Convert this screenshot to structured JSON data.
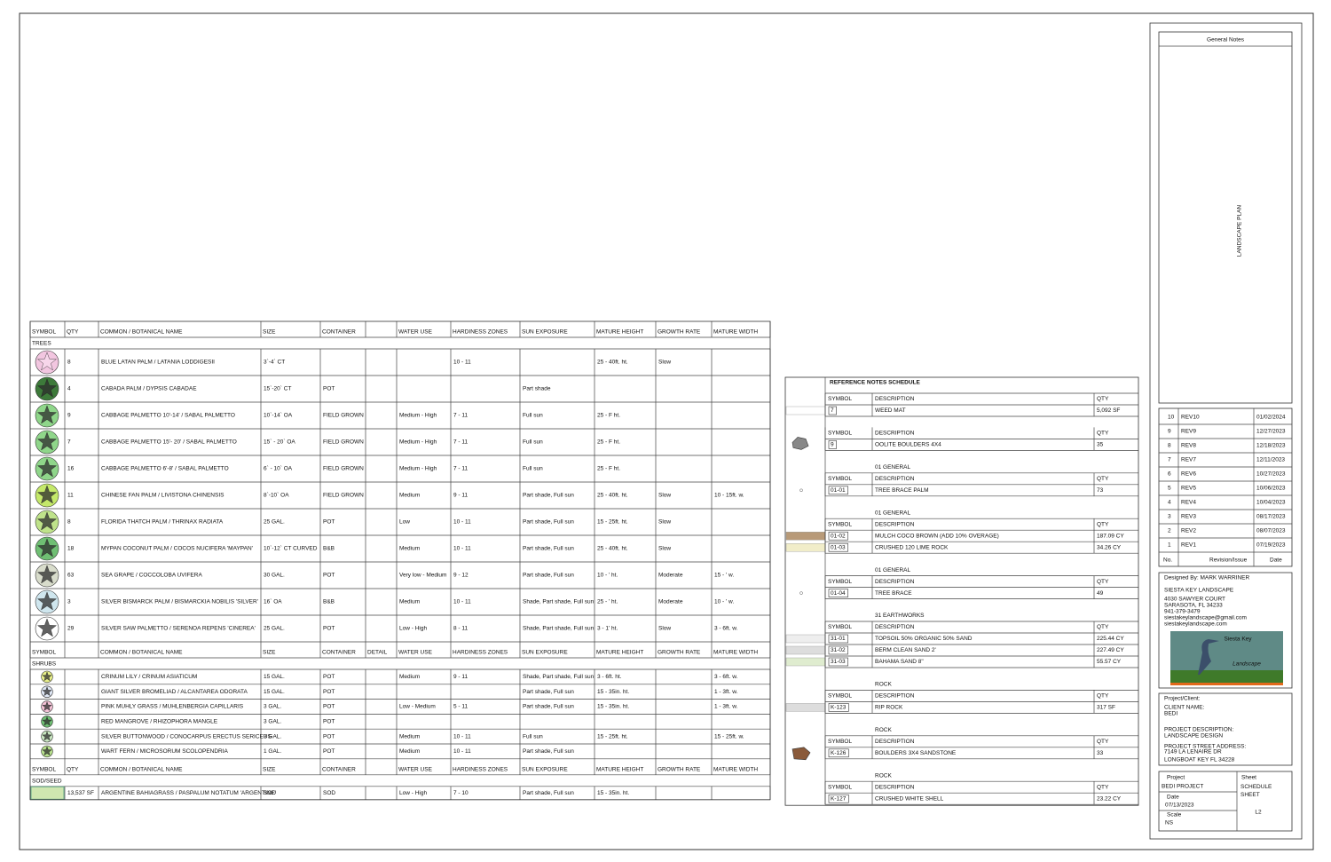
{
  "plant_schedule": {
    "sections": [
      {
        "header": [
          "SYMBOL",
          "QTY",
          "COMMON / BOTANICAL NAME",
          "SIZE",
          "CONTAINER",
          null,
          "WATER USE",
          "HARDINESS ZONES",
          "SUN EXPOSURE",
          "MATURE HEIGHT",
          "GROWTH RATE",
          "MATURE WIDTH"
        ],
        "label": "TREES",
        "rows": [
          [
            8,
            "BLUE LATAN PALM / LATANIA LODDIGESII",
            "3`-4` CT",
            null,
            null,
            null,
            "10 - 11",
            null,
            "25 - 40ft. ht.",
            "Slow",
            null
          ],
          [
            4,
            "CABADA PALM / DYPSIS CABADAE",
            "15`-20` CT",
            "POT",
            null,
            null,
            null,
            "Part shade",
            null,
            null,
            null
          ],
          [
            9,
            "CABBAGE PALMETTO 10'-14' / SABAL PALMETTO",
            "10`-14` OA",
            "FIELD GROWN",
            null,
            "Medium - High",
            "7 - 11",
            "Full sun",
            "25 - F ht.",
            null,
            null
          ],
          [
            7,
            "CABBAGE PALMETTO 15'- 20' / SABAL PALMETTO",
            "15` - 20` OA",
            "FIELD GROWN",
            null,
            "Medium - High",
            "7 - 11",
            "Full sun",
            "25 - F ht.",
            null,
            null
          ],
          [
            16,
            "CABBAGE PALMETTO 6'-8' / SABAL PALMETTO",
            "6` - 10` OA",
            "FIELD GROWN",
            null,
            "Medium - High",
            "7 - 11",
            "Full sun",
            "25 - F ht.",
            null,
            null
          ],
          [
            11,
            "CHINESE FAN PALM / LIVISTONA CHINENSIS",
            "8`-10` OA",
            "FIELD GROWN",
            null,
            "Medium",
            "9 - 11",
            "Part shade, Full sun",
            "25 - 40ft. ht.",
            "Slow",
            "10 - 15ft. w."
          ],
          [
            8,
            "FLORIDA THATCH PALM / THRINAX RADIATA",
            "25 GAL.",
            "POT",
            null,
            "Low",
            "10 - 11",
            "Part shade, Full sun",
            "15 - 25ft. ht.",
            "Slow",
            null
          ],
          [
            18,
            "MYPAN COCONUT PALM / COCOS NUCIFERA 'MAYPAN'",
            "10`-12` CT CURVED",
            "B&B",
            null,
            "Medium",
            "10 - 11",
            "Part shade, Full sun",
            "25 - 40ft. ht.",
            "Slow",
            null
          ],
          [
            63,
            "SEA GRAPE / COCCOLOBA UVIFERA",
            "30 GAL.",
            "POT",
            null,
            "Very low - Medium",
            "9 - 12",
            "Part shade, Full sun",
            "10 - ' ht.",
            "Moderate",
            "15 - ' w."
          ],
          [
            3,
            "SILVER BISMARCK PALM / BISMARCKIA NOBILIS 'SILVER'",
            "16` OA",
            "B&B",
            null,
            "Medium",
            "10 - 11",
            "Shade, Part shade, Full sun",
            "25 - ' ht.",
            "Moderate",
            "10 - ' w."
          ],
          [
            29,
            "SILVER SAW PALMETTO / SERENOA REPENS 'CINEREA'",
            "25 GAL.",
            "POT",
            null,
            "Low - High",
            "8 - 11",
            "Shade, Part shade, Full sun",
            "3 - 1' ht.",
            "Slow",
            "3 - 6ft. w."
          ]
        ]
      },
      {
        "header": [
          "SYMBOL",
          null,
          "COMMON / BOTANICAL NAME",
          "SIZE",
          "CONTAINER",
          "DETAIL",
          "WATER USE",
          "HARDINESS ZONES",
          "SUN EXPOSURE",
          "MATURE HEIGHT",
          "GROWTH RATE",
          "MATURE WIDTH"
        ],
        "label": "SHRUBS",
        "rows": [
          [
            null,
            "CRINUM LILY / CRINUM ASIATICUM",
            "15 GAL.",
            "POT",
            null,
            "Medium",
            "9 - 11",
            "Shade, Part shade, Full sun",
            "3 - 6ft. ht.",
            null,
            "3 - 6ft. w."
          ],
          [
            null,
            "GIANT SILVER BROMELIAD / ALCANTAREA ODORATA",
            "15 GAL.",
            "POT",
            null,
            null,
            null,
            "Part shade, Full sun",
            "15 - 35in. ht.",
            null,
            "1 - 3ft. w."
          ],
          [
            null,
            "PINK MUHLY GRASS / MUHLENBERGIA CAPILLARIS",
            "3 GAL.",
            "POT",
            null,
            "Low - Medium",
            "5 - 11",
            "Part shade, Full sun",
            "15 - 35in. ht.",
            null,
            "1 - 3ft. w."
          ],
          [
            null,
            "RED MANGROVE / RHIZOPHORA MANGLE",
            "3 GAL.",
            "POT",
            null,
            null,
            null,
            null,
            null,
            null,
            null
          ],
          [
            null,
            "SILVER BUTTONWOOD / CONOCARPUS ERECTUS SERICEUS",
            "3 GAL.",
            "POT",
            null,
            "Medium",
            "10 - 11",
            "Full sun",
            "15 - 25ft. ht.",
            null,
            "15 - 25ft. w."
          ],
          [
            null,
            "WART FERN / MICROSORUM SCOLOPENDRIA",
            "1 GAL.",
            "POT",
            null,
            "Medium",
            "10 - 11",
            "Part shade, Full sun",
            null,
            null,
            null
          ]
        ]
      },
      {
        "header": [
          "SYMBOL",
          "QTY",
          "COMMON / BOTANICAL NAME",
          "SIZE",
          "CONTAINER",
          null,
          "WATER USE",
          "HARDINESS ZONES",
          "SUN EXPOSURE",
          "MATURE HEIGHT",
          "GROWTH RATE",
          "MATURE WIDTH"
        ],
        "label": "SOD/SEED",
        "rows": [
          [
            "13,537 SF",
            "ARGENTINE BAHIAGRASS / PASPALUM NOTATUM 'ARGENTINE'",
            "SOD",
            "SOD",
            null,
            "Low - High",
            "7 - 10",
            "Part shade, Full sun",
            "15 - 35in. ht.",
            null,
            null
          ]
        ]
      }
    ]
  },
  "reference_notes": {
    "title": "REFERENCE NOTES SCHEDULE",
    "groups": [
      {
        "header": [
          "SYMBOL",
          "DESCRIPTION",
          "QTY"
        ],
        "rows": [
          [
            "7",
            "WEED MAT",
            "5,092 SF"
          ]
        ]
      },
      {
        "header": [
          "SYMBOL",
          "DESCRIPTION",
          "QTY"
        ],
        "rows": [
          [
            "9",
            "OOLITE BOULDERS 4X4",
            "35"
          ]
        ]
      },
      {
        "heading": "01 GENERAL",
        "header": [
          "SYMBOL",
          "DESCRIPTION",
          "QTY"
        ],
        "rows": [
          [
            "01-01",
            "TREE BRACE PALM",
            "73"
          ]
        ]
      },
      {
        "heading": "01 GENERAL",
        "header": [
          "SYMBOL",
          "DESCRIPTION",
          "QTY"
        ],
        "rows": [
          [
            "01-02",
            "MULCH COCO BROWN (ADD 10% OVERAGE)",
            "187.09 CY"
          ],
          [
            "01-03",
            "CRUSHED 120 LIME ROCK",
            "34.26 CY"
          ]
        ]
      },
      {
        "heading": "01 GENERAL",
        "header": [
          "SYMBOL",
          "DESCRIPTION",
          "QTY"
        ],
        "rows": [
          [
            "01-04",
            "TREE BRACE",
            "49"
          ]
        ]
      },
      {
        "heading": "31 EARTHWORKS",
        "header": [
          "SYMBOL",
          "DESCRIPTION",
          "QTY"
        ],
        "rows": [
          [
            "31-01",
            "TOPSOIL 50% ORGANIC 50% SAND",
            "225.44 CY"
          ],
          [
            "31-02",
            "BERM CLEAN SAND 2'",
            "227.49 CY"
          ],
          [
            "31-03",
            "BAHAMA SAND 8\"",
            "55.57 CY"
          ]
        ]
      },
      {
        "heading": "ROCK",
        "header": [
          "SYMBOL",
          "DESCRIPTION",
          "QTY"
        ],
        "rows": [
          [
            "K-123",
            "RIP ROCK",
            "317 SF"
          ]
        ]
      },
      {
        "heading": "ROCK",
        "header": [
          "SYMBOL",
          "DESCRIPTION",
          "QTY"
        ],
        "rows": [
          [
            "K-126",
            "BOULDERS 3X4 SANDSTONE",
            "33"
          ]
        ]
      },
      {
        "heading": "ROCK",
        "header": [
          "SYMBOL",
          "DESCRIPTION",
          "QTY"
        ],
        "rows": [
          [
            "K-127",
            "CRUSHED WHITE SHELL",
            "23.22 CY"
          ]
        ]
      }
    ]
  },
  "title_block": {
    "general_notes": "General Notes",
    "sheet_title": "LANDSCAPE PLAN",
    "revisions": [
      [
        10,
        "REV10",
        "01/02/2024"
      ],
      [
        9,
        "REV9",
        "12/27/2023"
      ],
      [
        8,
        "REV8",
        "12/18/2023"
      ],
      [
        7,
        "REV7",
        "12/11/2023"
      ],
      [
        6,
        "REV6",
        "10/27/2023"
      ],
      [
        5,
        "REV5",
        "10/06/2023"
      ],
      [
        4,
        "REV4",
        "10/04/2023"
      ],
      [
        3,
        "REV3",
        "08/17/2023"
      ],
      [
        2,
        "REV2",
        "08/07/2023"
      ],
      [
        1,
        "REV1",
        "07/19/2023"
      ]
    ],
    "revision_header": [
      "No.",
      "Revision/Issue",
      "Date"
    ],
    "designer": [
      "Designed By: MARK WARRINER",
      "SIESTA KEY LANDSCAPE",
      "4030 SAWYER COURT",
      "SARASOTA, FL 34233",
      "941-379-3479",
      "siestakeylandscape@gmail.com",
      "siestakeylandscape.com"
    ],
    "logo": [
      "Siesta Key",
      "Landscape"
    ],
    "project": [
      "Project/Client:",
      "CLIENT NAME:",
      "BEDI",
      "PROJECT DESCRIPTION:",
      "LANDSCAPE DESIGN",
      "PROJECT STREET ADDRESS:",
      "7149 LA LENAIRE DR",
      "LONGBOAT KEY FL 34228"
    ],
    "project_label": "Project",
    "project_name": "BEDI PROJECT",
    "date_label": "Date",
    "date": "07/13/2023",
    "scale_label": "Scale",
    "scale": "NS",
    "sheet_label": "Sheet",
    "sheet_name": "SCHEDULE SHEET",
    "sheet_number": "L2"
  }
}
